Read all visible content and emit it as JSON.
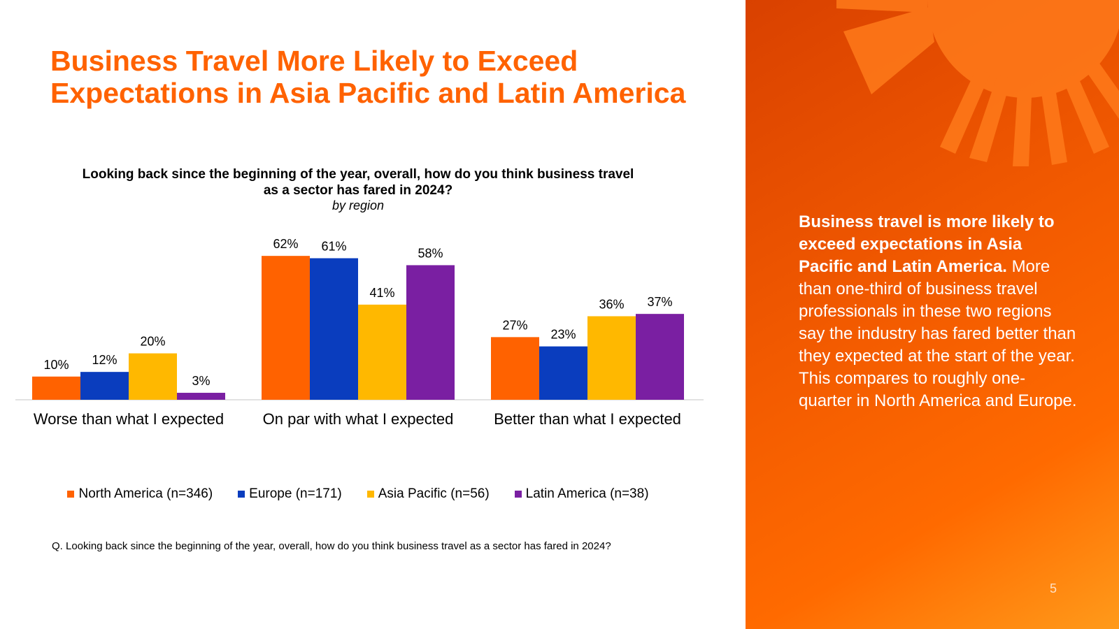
{
  "title": "Business Travel More Likely to Exceed Expectations in Asia Pacific and Latin America",
  "colors": {
    "accent": "#FF6200",
    "north_america": "#FF6200",
    "europe": "#0A3DBE",
    "asia_pacific": "#FFB800",
    "latin_america": "#7A1FA2"
  },
  "chart_data": {
    "type": "bar",
    "title": "Looking back since the beginning of the year, overall, how do you think business travel as a sector has fared in 2024?",
    "subtitle": "by region",
    "categories": [
      "Worse than what I expected",
      "On par with what I expected",
      "Better than what I expected"
    ],
    "series": [
      {
        "name": "North America (n=346)",
        "values": [
          10,
          62,
          27
        ],
        "labels": [
          "10%",
          "62%",
          "27%"
        ]
      },
      {
        "name": "Europe (n=171)",
        "values": [
          12,
          61,
          23
        ],
        "labels": [
          "12%",
          "61%",
          "23%"
        ]
      },
      {
        "name": "Asia Pacific (n=56)",
        "values": [
          20,
          41,
          36
        ],
        "labels": [
          "20%",
          "41%",
          "36%"
        ]
      },
      {
        "name": "Latin America (n=38)",
        "values": [
          3,
          58,
          37
        ],
        "labels": [
          "3%",
          "58%",
          "37%"
        ]
      }
    ],
    "ylim": [
      0,
      70
    ],
    "grid": false,
    "legend_position": "bottom",
    "unit": "%"
  },
  "footnote": "Q. Looking back since the beginning of the year, overall, how do you think business travel as a sector has fared in 2024?",
  "side_panel": {
    "headline": "Business travel is more likely to exceed expectations in Asia Pacific and Latin America.",
    "body": "More than one-third of business travel professionals in these two regions say the industry has fared better than they expected at the start of the year. This compares to roughly one-quarter in North America and Europe.",
    "page_number": "5"
  }
}
